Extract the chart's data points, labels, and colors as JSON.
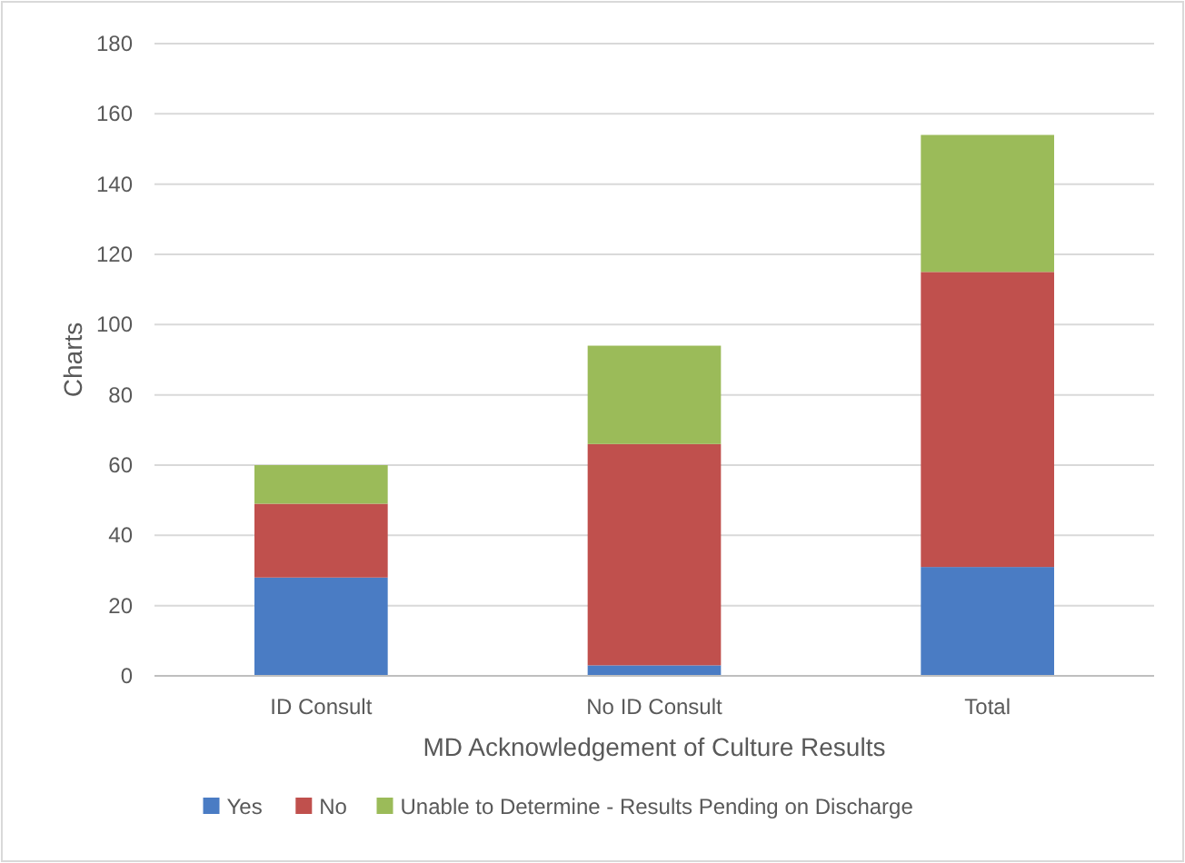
{
  "chart_data": {
    "type": "bar",
    "stacked": true,
    "xlabel": "MD Acknowledgement of Culture Results",
    "ylabel": "Charts",
    "categories": [
      "ID Consult",
      "No ID Consult",
      "Total"
    ],
    "series": [
      {
        "name": "Yes",
        "color": "#4a7cc4",
        "values": [
          28,
          3,
          31
        ]
      },
      {
        "name": "No",
        "color": "#c0504d",
        "values": [
          21,
          63,
          84
        ]
      },
      {
        "name": "Unable to Determine - Results Pending on Discharge",
        "color": "#9bbb59",
        "values": [
          11,
          28,
          39
        ]
      }
    ],
    "ylim": [
      0,
      180
    ],
    "yticks": [
      0,
      20,
      40,
      60,
      80,
      100,
      120,
      140,
      160,
      180
    ],
    "grid": "y",
    "legend": "bottom"
  }
}
